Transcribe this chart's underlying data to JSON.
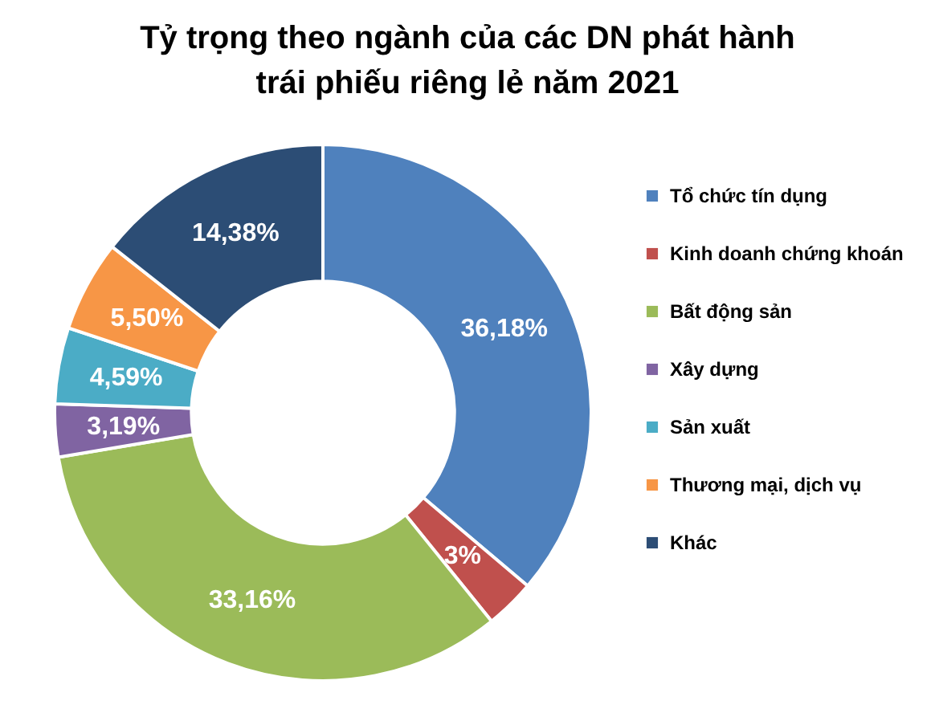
{
  "chart_data": {
    "type": "donut",
    "title": "Tỷ trọng theo ngành của các DN phát hành\ntrái phiếu riêng lẻ năm 2021",
    "categories": [
      "Tổ chức tín dụng",
      "Kinh doanh chứng khoán",
      "Bất động sản",
      "Xây dựng",
      "Sản xuất",
      "Thương mại, dịch vụ",
      "Khác"
    ],
    "values": [
      36.18,
      3,
      33.16,
      3.19,
      4.59,
      5.5,
      14.38
    ],
    "colors": [
      "#4f81bd",
      "#c0504d",
      "#9bbb59",
      "#8064a2",
      "#4bacc6",
      "#f79646",
      "#2c4d75"
    ],
    "value_labels": [
      "36,18%",
      "3%",
      "33,16%",
      "3,19%",
      "4,59%",
      "5,50%",
      "14,38%"
    ],
    "legend": "right"
  }
}
